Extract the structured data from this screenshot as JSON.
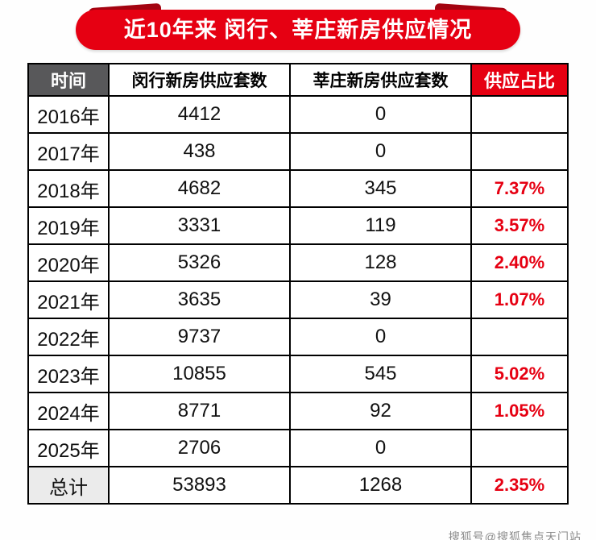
{
  "banner": {
    "title": "近10年来 闵行、莘庄新房供应情况"
  },
  "table": {
    "headers": {
      "time": "时间",
      "minhang": "闵行新房供应套数",
      "xinzhuang": "莘庄新房供应套数",
      "ratio": "供应占比"
    },
    "rows": [
      {
        "year": "2016年",
        "minhang": "4412",
        "xinzhuang": "0",
        "ratio": ""
      },
      {
        "year": "2017年",
        "minhang": "438",
        "xinzhuang": "0",
        "ratio": ""
      },
      {
        "year": "2018年",
        "minhang": "4682",
        "xinzhuang": "345",
        "ratio": "7.37%"
      },
      {
        "year": "2019年",
        "minhang": "3331",
        "xinzhuang": "119",
        "ratio": "3.57%"
      },
      {
        "year": "2020年",
        "minhang": "5326",
        "xinzhuang": "128",
        "ratio": "2.40%"
      },
      {
        "year": "2021年",
        "minhang": "3635",
        "xinzhuang": "39",
        "ratio": "1.07%"
      },
      {
        "year": "2022年",
        "minhang": "9737",
        "xinzhuang": "0",
        "ratio": ""
      },
      {
        "year": "2023年",
        "minhang": "10855",
        "xinzhuang": "545",
        "ratio": "5.02%"
      },
      {
        "year": "2024年",
        "minhang": "8771",
        "xinzhuang": "92",
        "ratio": "1.05%"
      },
      {
        "year": "2025年",
        "minhang": "2706",
        "xinzhuang": "0",
        "ratio": ""
      },
      {
        "year": "总计",
        "minhang": "53893",
        "xinzhuang": "1268",
        "ratio": "2.35%"
      }
    ]
  },
  "watermark": "搜狐号@搜狐焦点天门站",
  "colors": {
    "accent_red": "#e60012",
    "ribbon_dark": "#a30310",
    "header_gray": "#58585a"
  },
  "chart_data": {
    "type": "table",
    "title": "近10年来 闵行、莘庄新房供应情况",
    "columns": [
      "时间",
      "闵行新房供应套数",
      "莘庄新房供应套数",
      "供应占比"
    ],
    "rows": [
      [
        "2016年",
        4412,
        0,
        null
      ],
      [
        "2017年",
        438,
        0,
        null
      ],
      [
        "2018年",
        4682,
        345,
        "7.37%"
      ],
      [
        "2019年",
        3331,
        119,
        "3.57%"
      ],
      [
        "2020年",
        5326,
        128,
        "2.40%"
      ],
      [
        "2021年",
        3635,
        39,
        "1.07%"
      ],
      [
        "2022年",
        9737,
        0,
        null
      ],
      [
        "2023年",
        10855,
        545,
        "5.02%"
      ],
      [
        "2024年",
        8771,
        92,
        "1.05%"
      ],
      [
        "2025年",
        2706,
        0,
        null
      ],
      [
        "总计",
        53893,
        1268,
        "2.35%"
      ]
    ]
  }
}
